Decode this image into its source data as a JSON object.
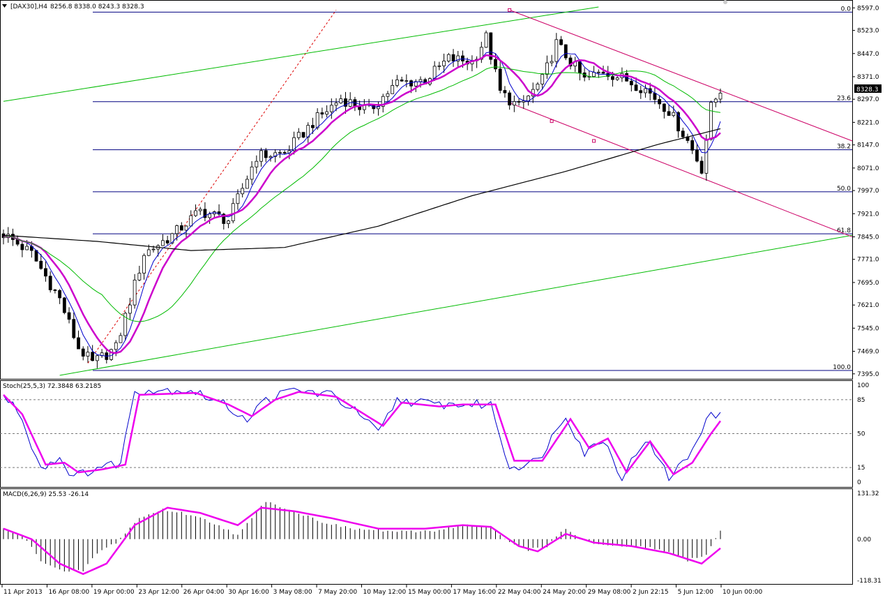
{
  "colors": {
    "bull": "#000000",
    "bear": "#000000",
    "bullFill": "#ffffff",
    "bearFill": "#000000",
    "ma_fast": "#0000cc",
    "ma_mid": "#cc00cc",
    "ma_slow": "#00bb00",
    "ma_long": "#000000",
    "fib": "#000080",
    "channel": "#cc0066",
    "trend": "#00bb00",
    "fan": "#dd0000",
    "stoch_main": "#0000cc",
    "stoch_signal": "#ee00ee",
    "macd_hist": "#000000",
    "macd_signal": "#ee00ee",
    "price_label_bg": "#000000",
    "price_label_fg": "#ffffff"
  },
  "header": {
    "menu_icon": "triangle-down-icon",
    "symbol": "[DAX30],H4",
    "ohlc": "8256.8 8338.0 8243.3 8328.3"
  },
  "current_price_label": "8328.3",
  "stoch_title": "Stoch(25,5,3) 72.3848 63.2185",
  "macd_title": "MACD(6,26,9) 25.53 -26.14",
  "chart_data": [
    {
      "type": "candlestick",
      "title": "[DAX30],H4",
      "price_ticks": [
        "8597.0",
        "8523.0",
        "8447.0",
        "8371.0",
        "8297.0",
        "8221.0",
        "8147.0",
        "8071.0",
        "7997.0",
        "7921.0",
        "7845.0",
        "7771.0",
        "7695.0",
        "7621.0",
        "7545.0",
        "7469.0",
        "7395.0"
      ],
      "ylim": [
        7390,
        8600
      ],
      "x_labels": [
        "11 Apr 2013",
        "16 Apr 08:00",
        "19 Apr 00:00",
        "23 Apr 12:00",
        "26 Apr 04:00",
        "30 Apr 16:00",
        "3 May 08:00",
        "7 May 20:00",
        "10 May 12:00",
        "15 May 00:00",
        "17 May 16:00",
        "22 May 04:00",
        "24 May 20:00",
        "29 May 08:00",
        "2 Jun 22:15",
        "5 Jun 12:00",
        "10 Jun 00:00"
      ],
      "fib_levels": [
        {
          "label": "0.0",
          "value": 8583
        },
        {
          "label": "23.6",
          "value": 8289
        },
        {
          "label": "38.2",
          "value": 8131
        },
        {
          "label": "50.0",
          "value": 7993
        },
        {
          "label": "61.8",
          "value": 7855
        },
        {
          "label": "100.0",
          "value": 7406
        }
      ],
      "anchors": [
        {
          "t": 0,
          "v": 7855
        },
        {
          "t": 6,
          "v": 7790
        },
        {
          "t": 12,
          "v": 7640
        },
        {
          "t": 16,
          "v": 7480
        },
        {
          "t": 19,
          "v": 7430
        },
        {
          "t": 24,
          "v": 7480
        },
        {
          "t": 30,
          "v": 7790
        },
        {
          "t": 36,
          "v": 7850
        },
        {
          "t": 42,
          "v": 7930
        },
        {
          "t": 48,
          "v": 7900
        },
        {
          "t": 54,
          "v": 8110
        },
        {
          "t": 60,
          "v": 8120
        },
        {
          "t": 66,
          "v": 8220
        },
        {
          "t": 72,
          "v": 8300
        },
        {
          "t": 78,
          "v": 8260
        },
        {
          "t": 84,
          "v": 8350
        },
        {
          "t": 90,
          "v": 8360
        },
        {
          "t": 95,
          "v": 8430
        },
        {
          "t": 100,
          "v": 8420
        },
        {
          "t": 103,
          "v": 8500
        },
        {
          "t": 106,
          "v": 8320
        },
        {
          "t": 110,
          "v": 8270
        },
        {
          "t": 115,
          "v": 8360
        },
        {
          "t": 118,
          "v": 8480
        },
        {
          "t": 121,
          "v": 8420
        },
        {
          "t": 124,
          "v": 8360
        },
        {
          "t": 128,
          "v": 8390
        },
        {
          "t": 133,
          "v": 8360
        },
        {
          "t": 137,
          "v": 8330
        },
        {
          "t": 142,
          "v": 8260
        },
        {
          "t": 146,
          "v": 8160
        },
        {
          "t": 149,
          "v": 8070
        },
        {
          "t": 151,
          "v": 8270
        },
        {
          "t": 153,
          "v": 8328
        }
      ],
      "ma_long": [
        {
          "t": 0,
          "v": 7850
        },
        {
          "t": 20,
          "v": 7830
        },
        {
          "t": 40,
          "v": 7800
        },
        {
          "t": 60,
          "v": 7810
        },
        {
          "t": 80,
          "v": 7880
        },
        {
          "t": 100,
          "v": 7980
        },
        {
          "t": 120,
          "v": 8060
        },
        {
          "t": 140,
          "v": 8150
        },
        {
          "t": 153,
          "v": 8200
        }
      ]
    },
    {
      "type": "line",
      "title": "Stoch(25,5,3)",
      "ylim": [
        0,
        100
      ],
      "levels": [
        "100",
        "85",
        "50",
        "15",
        "0"
      ],
      "anchors_main": [
        {
          "t": 0,
          "v": 88
        },
        {
          "t": 3,
          "v": 75
        },
        {
          "t": 8,
          "v": 15
        },
        {
          "t": 12,
          "v": 25
        },
        {
          "t": 15,
          "v": 5
        },
        {
          "t": 20,
          "v": 15
        },
        {
          "t": 25,
          "v": 20
        },
        {
          "t": 28,
          "v": 95
        },
        {
          "t": 40,
          "v": 95
        },
        {
          "t": 47,
          "v": 80
        },
        {
          "t": 52,
          "v": 65
        },
        {
          "t": 56,
          "v": 85
        },
        {
          "t": 62,
          "v": 95
        },
        {
          "t": 70,
          "v": 90
        },
        {
          "t": 76,
          "v": 70
        },
        {
          "t": 80,
          "v": 50
        },
        {
          "t": 84,
          "v": 85
        },
        {
          "t": 92,
          "v": 80
        },
        {
          "t": 97,
          "v": 80
        },
        {
          "t": 104,
          "v": 80
        },
        {
          "t": 108,
          "v": 15
        },
        {
          "t": 114,
          "v": 22
        },
        {
          "t": 120,
          "v": 70
        },
        {
          "t": 124,
          "v": 30
        },
        {
          "t": 128,
          "v": 45
        },
        {
          "t": 132,
          "v": 5
        },
        {
          "t": 137,
          "v": 45
        },
        {
          "t": 142,
          "v": 5
        },
        {
          "t": 146,
          "v": 25
        },
        {
          "t": 150,
          "v": 65
        },
        {
          "t": 153,
          "v": 72
        }
      ],
      "anchors_signal": [
        {
          "t": 0,
          "v": 90
        },
        {
          "t": 4,
          "v": 70
        },
        {
          "t": 9,
          "v": 18
        },
        {
          "t": 13,
          "v": 20
        },
        {
          "t": 16,
          "v": 10
        },
        {
          "t": 21,
          "v": 13
        },
        {
          "t": 26,
          "v": 18
        },
        {
          "t": 29,
          "v": 90
        },
        {
          "t": 41,
          "v": 92
        },
        {
          "t": 48,
          "v": 80
        },
        {
          "t": 53,
          "v": 68
        },
        {
          "t": 58,
          "v": 85
        },
        {
          "t": 63,
          "v": 93
        },
        {
          "t": 71,
          "v": 88
        },
        {
          "t": 77,
          "v": 70
        },
        {
          "t": 81,
          "v": 58
        },
        {
          "t": 85,
          "v": 82
        },
        {
          "t": 93,
          "v": 78
        },
        {
          "t": 98,
          "v": 80
        },
        {
          "t": 105,
          "v": 80
        },
        {
          "t": 109,
          "v": 22
        },
        {
          "t": 115,
          "v": 22
        },
        {
          "t": 121,
          "v": 65
        },
        {
          "t": 125,
          "v": 35
        },
        {
          "t": 129,
          "v": 45
        },
        {
          "t": 133,
          "v": 10
        },
        {
          "t": 138,
          "v": 42
        },
        {
          "t": 143,
          "v": 8
        },
        {
          "t": 147,
          "v": 20
        },
        {
          "t": 151,
          "v": 50
        },
        {
          "t": 153,
          "v": 63
        }
      ]
    },
    {
      "type": "bar",
      "title": "MACD(6,26,9)",
      "ylim": [
        -118.31,
        131.32
      ],
      "ticks": [
        "131.32",
        "0.00",
        "-118.31"
      ],
      "anchors_hist": [
        {
          "t": 0,
          "v": 30
        },
        {
          "t": 4,
          "v": 10
        },
        {
          "t": 8,
          "v": -60
        },
        {
          "t": 13,
          "v": -95
        },
        {
          "t": 17,
          "v": -90
        },
        {
          "t": 20,
          "v": -40
        },
        {
          "t": 24,
          "v": -10
        },
        {
          "t": 29,
          "v": 60
        },
        {
          "t": 34,
          "v": 85
        },
        {
          "t": 40,
          "v": 70
        },
        {
          "t": 46,
          "v": 40
        },
        {
          "t": 50,
          "v": 10
        },
        {
          "t": 56,
          "v": 110
        },
        {
          "t": 62,
          "v": 80
        },
        {
          "t": 68,
          "v": 50
        },
        {
          "t": 74,
          "v": 30
        },
        {
          "t": 80,
          "v": 25
        },
        {
          "t": 86,
          "v": 20
        },
        {
          "t": 92,
          "v": 25
        },
        {
          "t": 98,
          "v": 40
        },
        {
          "t": 104,
          "v": 35
        },
        {
          "t": 108,
          "v": -10
        },
        {
          "t": 112,
          "v": -30
        },
        {
          "t": 116,
          "v": -20
        },
        {
          "t": 120,
          "v": 30
        },
        {
          "t": 124,
          "v": -5
        },
        {
          "t": 128,
          "v": -20
        },
        {
          "t": 134,
          "v": -20
        },
        {
          "t": 140,
          "v": -30
        },
        {
          "t": 146,
          "v": -60
        },
        {
          "t": 150,
          "v": -45
        },
        {
          "t": 153,
          "v": 25
        }
      ],
      "anchors_signal": [
        {
          "t": 0,
          "v": 30
        },
        {
          "t": 6,
          "v": 0
        },
        {
          "t": 12,
          "v": -70
        },
        {
          "t": 17,
          "v": -100
        },
        {
          "t": 22,
          "v": -70
        },
        {
          "t": 28,
          "v": 40
        },
        {
          "t": 35,
          "v": 90
        },
        {
          "t": 42,
          "v": 75
        },
        {
          "t": 50,
          "v": 40
        },
        {
          "t": 55,
          "v": 90
        },
        {
          "t": 62,
          "v": 80
        },
        {
          "t": 70,
          "v": 60
        },
        {
          "t": 80,
          "v": 30
        },
        {
          "t": 90,
          "v": 30
        },
        {
          "t": 98,
          "v": 40
        },
        {
          "t": 104,
          "v": 35
        },
        {
          "t": 110,
          "v": -20
        },
        {
          "t": 114,
          "v": -35
        },
        {
          "t": 120,
          "v": 15
        },
        {
          "t": 126,
          "v": -10
        },
        {
          "t": 134,
          "v": -20
        },
        {
          "t": 142,
          "v": -40
        },
        {
          "t": 149,
          "v": -70
        },
        {
          "t": 153,
          "v": -26
        }
      ]
    }
  ]
}
